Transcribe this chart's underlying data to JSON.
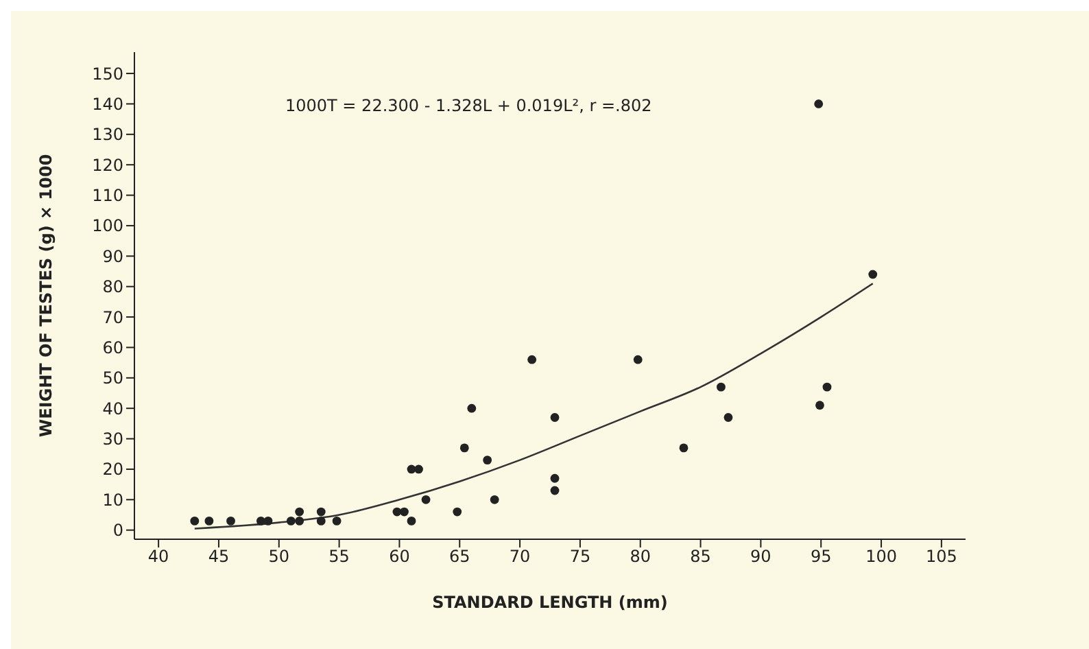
{
  "chart_data": {
    "type": "scatter",
    "xlabel": "STANDARD LENGTH (mm)",
    "ylabel": "WEIGHT OF TESTES (g) × 1000",
    "annotations": [
      "1000T = 22.300 - 1.328L + 0.019L², r =.802"
    ],
    "series": [
      {
        "color": "#222222",
        "marker": "circle",
        "x": [
          43,
          44.2,
          46,
          48.5,
          49.1,
          51,
          51.7,
          51.7,
          53.5,
          53.5,
          54.8,
          59.8,
          60.4,
          61,
          61,
          61.6,
          62.2,
          64.8,
          65.4,
          66,
          67.3,
          67.9,
          71,
          72.9,
          72.9,
          72.9,
          79.8,
          83.6,
          86.7,
          87.3,
          94.8,
          94.9,
          95.5,
          99.3
        ],
        "values": [
          3,
          3,
          3,
          3,
          3,
          3,
          3,
          6,
          6,
          3,
          3,
          6,
          6,
          3,
          20,
          20,
          10,
          6,
          27,
          40,
          23,
          10,
          56,
          37,
          17,
          13,
          56,
          27,
          47,
          37,
          140,
          41,
          47,
          84
        ]
      },
      {
        "type": "line",
        "color": "#333333",
        "marker": "none",
        "line_style": "solid",
        "x": [
          43,
          50,
          55,
          60,
          65,
          70,
          75,
          80,
          85,
          90,
          95,
          99.3
        ],
        "values": [
          0.5,
          2.5,
          5,
          10,
          16,
          23,
          31,
          39,
          47,
          58,
          70,
          81
        ]
      }
    ],
    "xlim": [
      38,
      107
    ],
    "ylim": [
      -3,
      157
    ],
    "xticks": [
      40,
      45,
      50,
      55,
      60,
      65,
      70,
      75,
      80,
      85,
      90,
      95,
      100,
      105
    ],
    "yticks": [
      0,
      10,
      20,
      30,
      40,
      50,
      60,
      70,
      80,
      90,
      100,
      110,
      120,
      130,
      140,
      150
    ],
    "grid": false,
    "legend": false
  }
}
